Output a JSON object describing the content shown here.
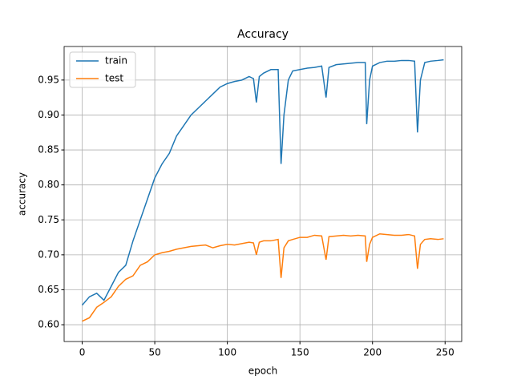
{
  "chart_data": {
    "type": "line",
    "title": "Accuracy",
    "x_label": "epoch",
    "y_label": "accuracy",
    "x": [
      0,
      5,
      10,
      15,
      20,
      25,
      30,
      35,
      40,
      45,
      50,
      55,
      60,
      65,
      70,
      75,
      80,
      85,
      90,
      95,
      100,
      105,
      110,
      115,
      118,
      120,
      122,
      125,
      130,
      135,
      137,
      139,
      142,
      145,
      150,
      155,
      160,
      165,
      168,
      170,
      175,
      180,
      185,
      190,
      195,
      196,
      198,
      200,
      205,
      210,
      215,
      220,
      225,
      229,
      231,
      233,
      236,
      240,
      245,
      249
    ],
    "series": [
      {
        "name": "train",
        "color": "#1f77b4",
        "values": [
          0.628,
          0.64,
          0.645,
          0.635,
          0.655,
          0.675,
          0.685,
          0.72,
          0.75,
          0.78,
          0.81,
          0.83,
          0.845,
          0.87,
          0.885,
          0.9,
          0.91,
          0.92,
          0.93,
          0.94,
          0.945,
          0.948,
          0.95,
          0.955,
          0.952,
          0.918,
          0.955,
          0.96,
          0.965,
          0.965,
          0.83,
          0.9,
          0.95,
          0.963,
          0.965,
          0.967,
          0.968,
          0.97,
          0.925,
          0.968,
          0.972,
          0.973,
          0.974,
          0.975,
          0.975,
          0.887,
          0.95,
          0.97,
          0.975,
          0.977,
          0.977,
          0.978,
          0.978,
          0.977,
          0.875,
          0.95,
          0.975,
          0.977,
          0.978,
          0.979
        ]
      },
      {
        "name": "test",
        "color": "#ff7f0e",
        "values": [
          0.605,
          0.61,
          0.625,
          0.632,
          0.64,
          0.655,
          0.665,
          0.67,
          0.685,
          0.69,
          0.7,
          0.703,
          0.705,
          0.708,
          0.71,
          0.712,
          0.713,
          0.714,
          0.71,
          0.713,
          0.715,
          0.714,
          0.716,
          0.718,
          0.717,
          0.7,
          0.718,
          0.72,
          0.72,
          0.722,
          0.667,
          0.71,
          0.72,
          0.722,
          0.725,
          0.725,
          0.728,
          0.727,
          0.693,
          0.726,
          0.727,
          0.728,
          0.727,
          0.728,
          0.727,
          0.69,
          0.715,
          0.725,
          0.73,
          0.729,
          0.728,
          0.728,
          0.729,
          0.727,
          0.68,
          0.715,
          0.722,
          0.723,
          0.722,
          0.723
        ]
      }
    ],
    "xlim": [
      -12.45,
      261.45
    ],
    "ylim": [
      0.576,
      0.998
    ],
    "xticks": [
      0,
      50,
      100,
      150,
      200,
      250
    ],
    "yticks": [
      {
        "value": 0.6,
        "label": "0.60"
      },
      {
        "value": 0.65,
        "label": "0.65"
      },
      {
        "value": 0.7,
        "label": "0.70"
      },
      {
        "value": 0.75,
        "label": "0.75"
      },
      {
        "value": 0.8,
        "label": "0.80"
      },
      {
        "value": 0.85,
        "label": "0.85"
      },
      {
        "value": 0.9,
        "label": "0.90"
      },
      {
        "value": 0.95,
        "label": "0.95"
      }
    ],
    "grid": true,
    "legend": "upper left"
  }
}
